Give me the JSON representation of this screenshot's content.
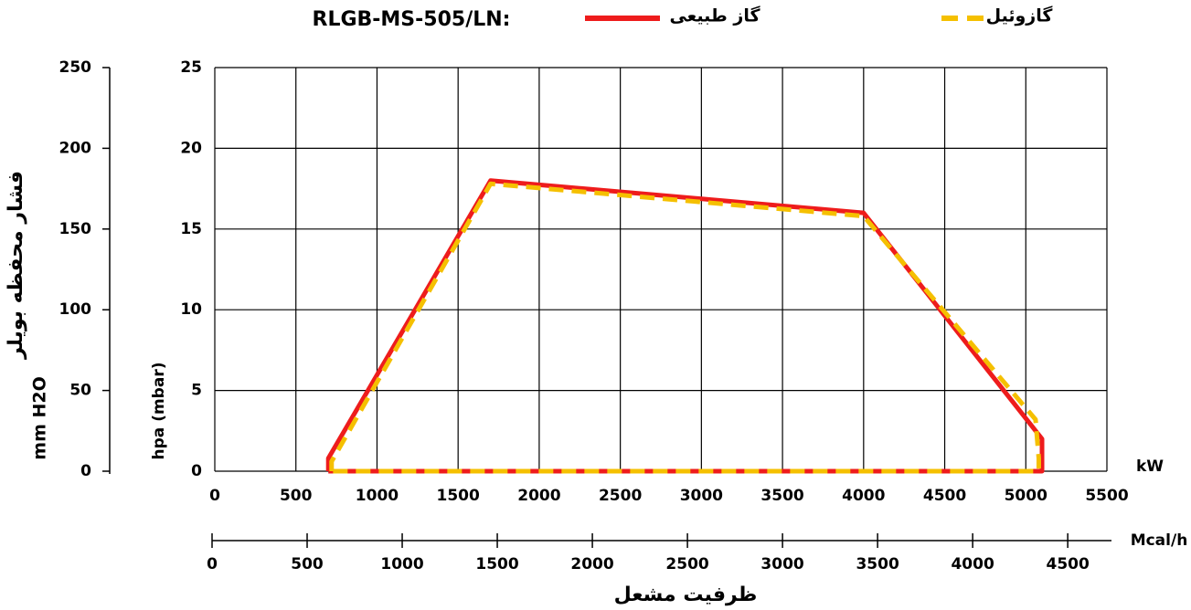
{
  "chart_data": {
    "type": "line",
    "title": "RLGB-MS-505/LN:",
    "x_label": "kW",
    "x2_label": "Mcal/h",
    "x_title": "ظرفیت مشعل",
    "y_label": "hpa (mbar)",
    "y2_label": "mm H2O",
    "y2_title": "فشار محفظه بویلر",
    "xlim": [
      0,
      5500
    ],
    "xticks": [
      0,
      500,
      1000,
      1500,
      2000,
      2500,
      3000,
      3500,
      4000,
      4500,
      5000,
      5500
    ],
    "x2lim": [
      0,
      4730
    ],
    "x2ticks": [
      0,
      500,
      1000,
      1500,
      2000,
      2500,
      3000,
      3500,
      4000,
      4500
    ],
    "ylim": [
      0,
      25
    ],
    "yticks": [
      0,
      5,
      10,
      15,
      20,
      25
    ],
    "y2lim": [
      0,
      250
    ],
    "y2ticks": [
      0,
      50,
      100,
      150,
      200,
      250
    ],
    "grid": true,
    "series": [
      {
        "name": "گاز طبیعی",
        "color": "#ee1c1c",
        "dash": false,
        "x": [
          700,
          700,
          1700,
          4000,
          5100,
          5100,
          700
        ],
        "values": [
          0,
          0.8,
          18,
          16,
          2,
          0,
          0
        ]
      },
      {
        "name": "گازوئیل",
        "color": "#f5c000",
        "dash": true,
        "x": [
          720,
          720,
          1700,
          4000,
          5060,
          5080,
          5080,
          720
        ],
        "values": [
          0,
          0.6,
          17.8,
          15.8,
          3.2,
          0.8,
          0,
          0
        ]
      }
    ]
  }
}
